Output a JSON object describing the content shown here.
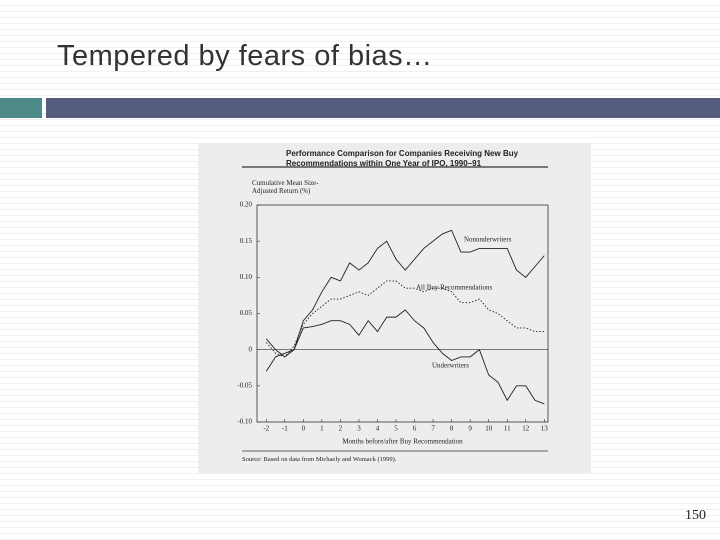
{
  "slide": {
    "title": "Tempered by fears of bias…",
    "page_number": "150"
  },
  "chart_data": {
    "type": "line",
    "title": "Performance Comparison for Companies Receiving New Buy Recommendations within One Year of IPO, 1990–91",
    "y_label": "Cumulative Mean Size-Adjusted Return (%)",
    "x_label": "Months before/after Buy Recommendation",
    "source": "Source: Based on data from Michaely and Womack (1999).",
    "x": [
      -2,
      -1.5,
      -1,
      -0.5,
      0,
      0.5,
      1,
      1.5,
      2,
      2.5,
      3,
      3.5,
      4,
      4.5,
      5,
      5.5,
      6,
      6.5,
      7,
      7.5,
      8,
      8.5,
      9,
      9.5,
      10,
      10.5,
      11,
      11.5,
      12,
      12.5,
      13
    ],
    "series": [
      {
        "name": "Nonunderwriters",
        "color": "#222222",
        "line_style": "solid",
        "values": [
          -0.03,
          -0.01,
          -0.005,
          0,
          0.04,
          0.055,
          0.08,
          0.1,
          0.095,
          0.12,
          0.11,
          0.12,
          0.14,
          0.15,
          0.125,
          0.11,
          0.125,
          0.14,
          0.15,
          0.16,
          0.165,
          0.135,
          0.135,
          0.14,
          0.14,
          0.14,
          0.14,
          0.11,
          0.1,
          0.115,
          0.13
        ]
      },
      {
        "name": "All Buy Recommendations",
        "color": "#222222",
        "line_style": "dotted",
        "values": [
          0.01,
          -0.005,
          -0.01,
          0.005,
          0.035,
          0.05,
          0.06,
          0.07,
          0.07,
          0.075,
          0.08,
          0.075,
          0.085,
          0.095,
          0.095,
          0.085,
          0.085,
          0.08,
          0.085,
          0.085,
          0.08,
          0.065,
          0.065,
          0.07,
          0.055,
          0.05,
          0.04,
          0.03,
          0.03,
          0.025,
          0.025
        ]
      },
      {
        "name": "Underwriters",
        "color": "#222222",
        "line_style": "solid",
        "values": [
          0.015,
          0,
          -0.01,
          0,
          0.03,
          0.032,
          0.035,
          0.04,
          0.04,
          0.035,
          0.02,
          0.04,
          0.025,
          0.045,
          0.045,
          0.055,
          0.04,
          0.03,
          0.01,
          -0.005,
          -0.015,
          -0.01,
          -0.01,
          0,
          -0.035,
          -0.045,
          -0.07,
          -0.05,
          -0.05,
          -0.07,
          -0.075
        ]
      }
    ],
    "xlim": [
      -2.5,
      13.2
    ],
    "ylim": [
      -0.1,
      0.2
    ],
    "xticks": [
      -2,
      -1,
      0,
      1,
      2,
      3,
      4,
      5,
      6,
      7,
      8,
      9,
      10,
      11,
      12,
      13
    ],
    "yticks": [
      {
        "value": 0.2,
        "label": "0.20"
      },
      0.15,
      {
        "value": 0.1,
        "label": "0.10"
      },
      0.05,
      0,
      -0.05,
      {
        "value": -0.1,
        "label": "-0.10"
      }
    ],
    "zero_line": true
  }
}
